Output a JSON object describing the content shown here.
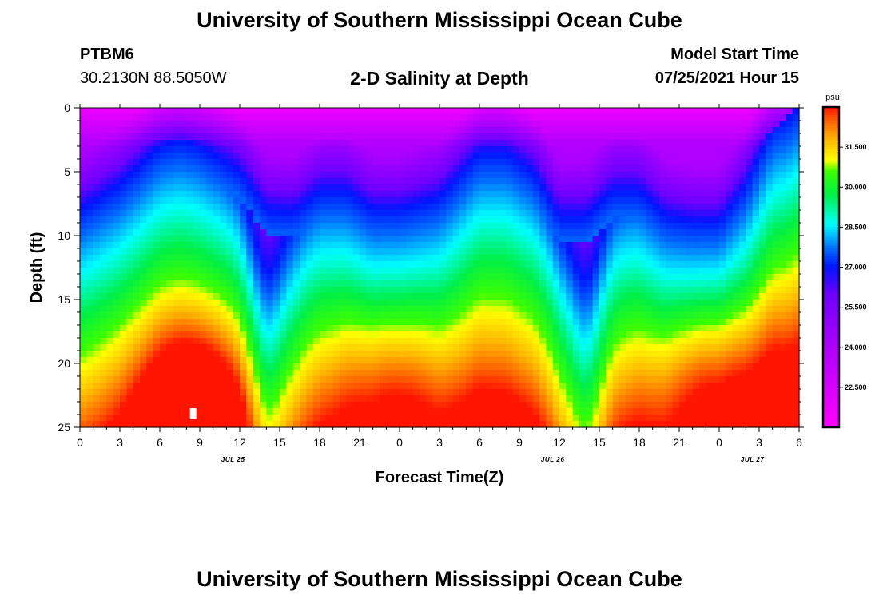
{
  "page": {
    "title_top": "University of Southern Mississippi Ocean Cube",
    "title_bottom": "University of Southern Mississippi Ocean Cube",
    "station_id": "PTBM6",
    "station_coords": "30.2130N  88.5050W",
    "plot_title": "2-D Salinity at Depth",
    "model_start_label": "Model Start Time",
    "model_start_value": "07/25/2021 Hour 15"
  },
  "chart_data": {
    "type": "heatmap",
    "title": "2-D Salinity at Depth",
    "xlabel": "Forecast Time(Z)",
    "ylabel": "Depth (ft)",
    "x_ticks": [
      "0",
      "3",
      "6",
      "9",
      "12",
      "15",
      "18",
      "21",
      "0",
      "3",
      "6",
      "9",
      "12",
      "15",
      "18",
      "21",
      "0",
      "3",
      "6"
    ],
    "x_range_hours": [
      0,
      54
    ],
    "date_labels": [
      {
        "text": "JUL 25",
        "hour": 11.5
      },
      {
        "text": "JUL 26",
        "hour": 35.5
      },
      {
        "text": "JUL 27",
        "hour": 50.5
      }
    ],
    "y_ticks": [
      "0",
      "5",
      "10",
      "15",
      "20",
      "25"
    ],
    "ylim": [
      0,
      25
    ],
    "colorbar": {
      "unit": "psu",
      "min": 21.0,
      "max": 33.0,
      "ticks": [
        "31.500",
        "30.000",
        "28.500",
        "27.000",
        "25.500",
        "24.000",
        "22.500"
      ],
      "tick_values": [
        31.5,
        30.0,
        28.5,
        27.0,
        25.5,
        24.0,
        22.5
      ]
    },
    "isohaline_27_depth_ft": {
      "hours": [
        0,
        3,
        6,
        7.5,
        9,
        12,
        14,
        16,
        18,
        20,
        22,
        24,
        27,
        30,
        32,
        34,
        36,
        38,
        40,
        42,
        44,
        46,
        48,
        50,
        52,
        53,
        54
      ],
      "depths": [
        8,
        6,
        3,
        2.5,
        3,
        5,
        8,
        8.2,
        6.5,
        6.5,
        8,
        8,
        7,
        3.5,
        3.5,
        5,
        8.5,
        8.5,
        6.5,
        6.5,
        8.5,
        9,
        9,
        6,
        1.5,
        1,
        0
      ]
    },
    "salinity_maxima": [
      {
        "hour": 8.5,
        "depth_ft": 24,
        "psu": 33.0
      },
      {
        "hour": 23.5,
        "depth_ft": 22,
        "psu": 32.3
      },
      {
        "hour": 47.5,
        "depth_ft": 22,
        "psu": 33.0
      }
    ]
  }
}
